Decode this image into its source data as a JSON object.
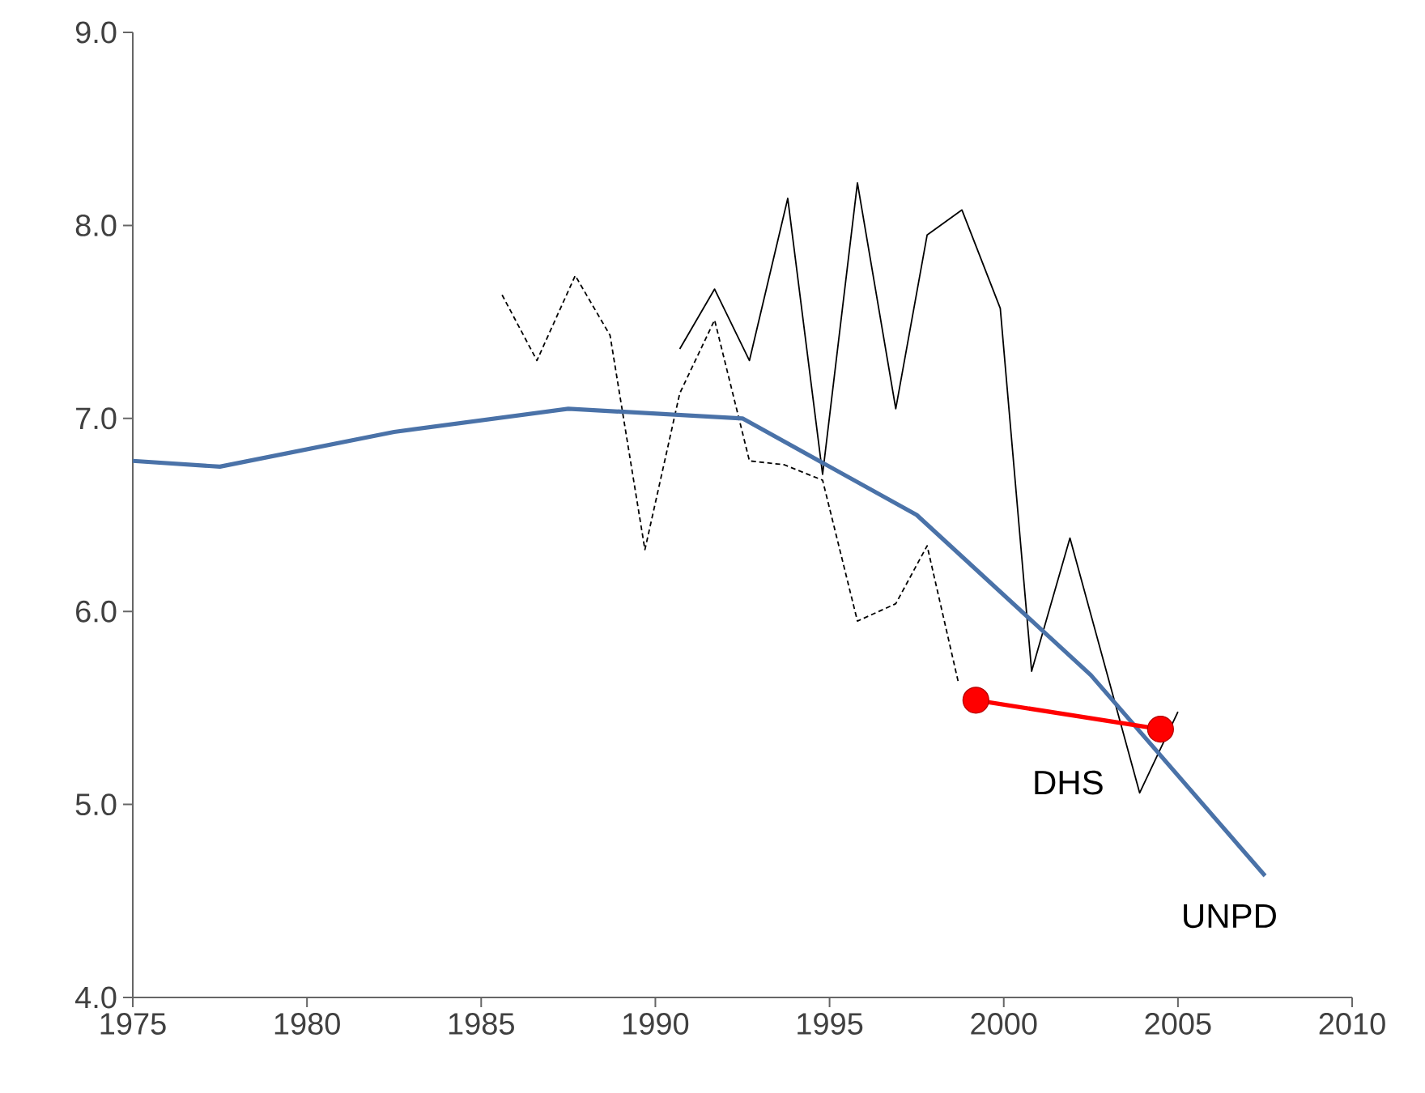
{
  "chart_data": {
    "type": "line",
    "xlim": [
      1975,
      2010
    ],
    "ylim": [
      4,
      9
    ],
    "xticks": [
      1975,
      1980,
      1985,
      1990,
      1995,
      2000,
      2005,
      2010
    ],
    "yticks": [
      {
        "value": 4,
        "label": "4.0"
      },
      {
        "value": 5,
        "label": "5.0"
      },
      {
        "value": 6,
        "label": "6.0"
      },
      {
        "value": 7,
        "label": "7.0"
      },
      {
        "value": 8,
        "label": "8.0"
      },
      {
        "value": 9,
        "label": "9.0"
      }
    ],
    "grid": false,
    "legend": false,
    "series": [
      {
        "color": "#000000",
        "line_style": "solid",
        "marker": "none",
        "x": [
          1990.7,
          1991.7,
          1992.7,
          1993.8,
          1994.8,
          1995.8,
          1996.9,
          1997.8,
          1998.8,
          1999.9,
          2000.8,
          2001.9,
          2003.9,
          2005.0
        ],
        "values": [
          7.36,
          7.67,
          7.3,
          8.14,
          6.71,
          8.22,
          7.05,
          7.95,
          8.08,
          7.57,
          5.69,
          6.38,
          5.06,
          5.48
        ]
      },
      {
        "color": "#000000",
        "line_style": "dashed",
        "marker": "none",
        "x": [
          1985.6,
          1986.6,
          1987.7,
          1988.7,
          1989.7,
          1990.7,
          1991.7,
          1992.7,
          1993.7,
          1994.8,
          1995.8,
          1996.9,
          1997.8,
          1998.7
        ],
        "values": [
          7.64,
          7.3,
          7.74,
          7.43,
          6.32,
          7.13,
          7.51,
          6.78,
          6.76,
          6.68,
          5.95,
          6.04,
          6.34,
          5.63
        ]
      },
      {
        "name": "UNPD",
        "color": "#4a72a8",
        "line_style": "solid",
        "marker": "none",
        "x": [
          1975,
          1977.5,
          1982.5,
          1987.5,
          1992.5,
          1997.5,
          2002.5,
          2007.5
        ],
        "values": [
          6.78,
          6.75,
          6.93,
          7.05,
          7.0,
          6.5,
          5.67,
          4.63
        ]
      },
      {
        "name": "DHS",
        "color": "#ff0000",
        "line_style": "solid",
        "marker": "circle",
        "x": [
          1999.2,
          2004.5
        ],
        "values": [
          5.54,
          5.39
        ]
      }
    ]
  }
}
